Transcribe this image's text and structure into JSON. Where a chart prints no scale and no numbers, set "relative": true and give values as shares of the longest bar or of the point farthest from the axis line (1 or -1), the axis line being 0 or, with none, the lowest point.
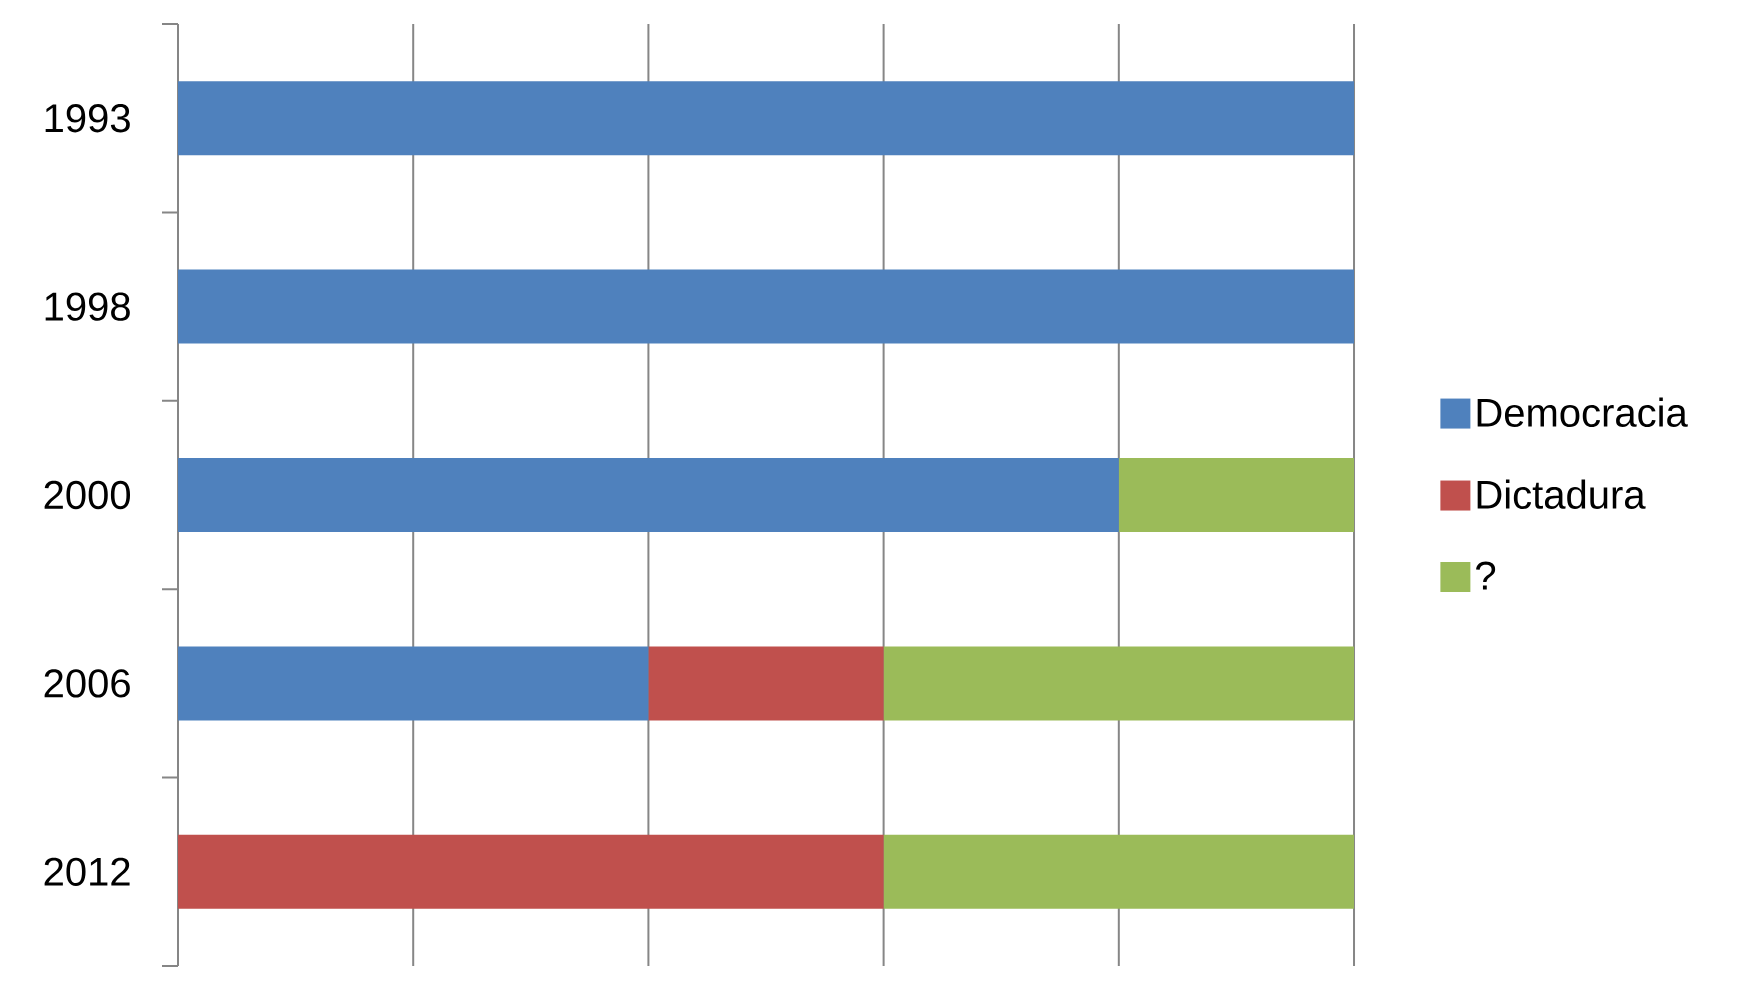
{
  "chart_data": {
    "type": "bar",
    "orientation": "horizontal",
    "stacked": true,
    "relative": true,
    "categories": [
      "1993",
      "1998",
      "2000",
      "2006",
      "2012"
    ],
    "series": [
      {
        "name": "Democracia",
        "color": "#4f81bd",
        "values": [
          1,
          1,
          0.8,
          0.4,
          null
        ]
      },
      {
        "name": "Dictadura",
        "color": "#c0504d",
        "values": [
          null,
          null,
          null,
          0.2,
          0.6
        ]
      },
      {
        "name": "?",
        "color": "#9bbb59",
        "values": [
          null,
          null,
          0.2,
          0.4,
          0.4
        ]
      }
    ],
    "grid": "x",
    "legend": "right"
  }
}
